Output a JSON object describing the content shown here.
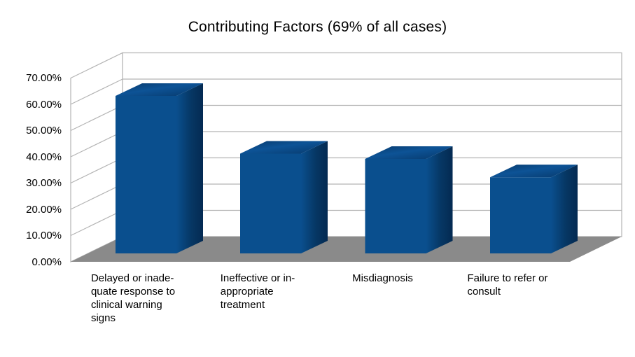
{
  "title": "Contributing Factors (69% of all cases)",
  "chart_data": {
    "type": "bar",
    "projection": "3d",
    "title": "Contributing Factors (69% of all cases)",
    "categories": [
      "Delayed or inadequate response to clinical warning signs",
      "Ineffective or inappropriate treatment",
      "Misdiagnosis",
      "Failure to refer or consult"
    ],
    "category_display_lines": [
      [
        "Delayed or inade-",
        "quate response to",
        "clinical warning",
        "signs"
      ],
      [
        "Ineffective or in-",
        "appropriate",
        "treatment"
      ],
      [
        "Misdiagnosis"
      ],
      [
        "Failure to refer or",
        "consult"
      ]
    ],
    "values": [
      60,
      38,
      36,
      29
    ],
    "value_unit": "percent",
    "y_ticks": [
      "0.00%",
      "10.00%",
      "20.00%",
      "30.00%",
      "40.00%",
      "50.00%",
      "60.00%",
      "70.00%"
    ],
    "ylim": [
      0,
      70
    ],
    "grid": "horizontal",
    "legend": "none",
    "colors": {
      "bar_front": "#0A4F8E",
      "bar_side_dark": "#042A52",
      "bar_top_light": "#0D5396",
      "bar_top_dark": "#07396B",
      "floor": "#8A8A8A",
      "wall": "#FFFFFF",
      "gridline": "#B3B3B3",
      "text": "#000000",
      "background": "#FFFFFF"
    }
  }
}
